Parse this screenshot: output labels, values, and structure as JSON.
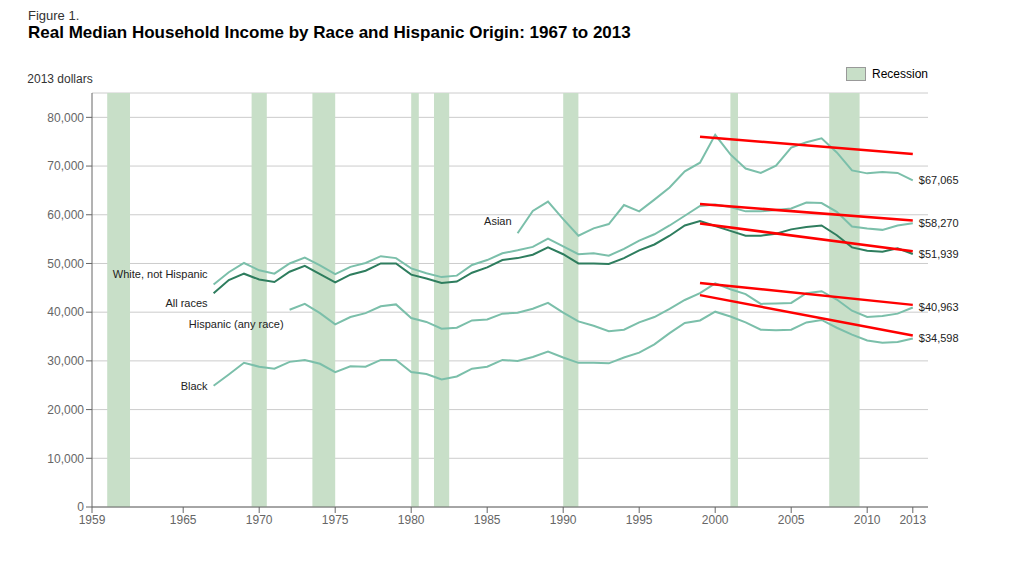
{
  "chart_data": {
    "type": "line",
    "subtitle": "Figure 1.",
    "title": "Real Median Household Income by Race and Hispanic Origin: 1967 to 2013",
    "y_label": "2013 dollars",
    "xlim": [
      1959,
      2014
    ],
    "xticks": [
      1959,
      1965,
      1970,
      1975,
      1980,
      1985,
      1990,
      1995,
      2000,
      2005,
      2010,
      2013
    ],
    "ylim": [
      0,
      85000
    ],
    "yticks": [
      0,
      {
        "value": 10000,
        "label": "10,000"
      },
      {
        "value": 20000,
        "label": "20,000"
      },
      {
        "value": 30000,
        "label": "30,000"
      },
      {
        "value": 40000,
        "label": "40,000"
      },
      {
        "value": 50000,
        "label": "50,000"
      },
      {
        "value": 60000,
        "label": "60,000"
      },
      {
        "value": 70000,
        "label": "70,000"
      },
      {
        "value": 80000,
        "label": "80,000"
      }
    ],
    "grid": true,
    "legend": "upper right",
    "recessions": {
      "name": "Recession",
      "color": "#c8dfc8",
      "ranges": [
        [
          1960,
          1961.5
        ],
        [
          1969.5,
          1970.5
        ],
        [
          1973.5,
          1975
        ],
        [
          1980,
          1980.5
        ],
        [
          1981.5,
          1982.5
        ],
        [
          1990,
          1991
        ],
        [
          2001,
          2001.5
        ],
        [
          2007.5,
          2009.5
        ]
      ]
    },
    "series": [
      {
        "name": "Asian",
        "color": "#7bbfaa",
        "x": [
          1987,
          1988,
          1989,
          1990,
          1991,
          1992,
          1993,
          1994,
          1995,
          1996,
          1997,
          1998,
          1999,
          2000,
          2001,
          2002,
          2003,
          2004,
          2005,
          2006,
          2007,
          2008,
          2009,
          2010,
          2011,
          2012,
          2013
        ],
        "values": [
          56200,
          60800,
          62700,
          59100,
          55700,
          57200,
          58100,
          62000,
          60700,
          63100,
          65600,
          68900,
          70700,
          76400,
          72400,
          69500,
          68600,
          70100,
          73800,
          74900,
          75700,
          72800,
          69100,
          68500,
          68800,
          68600,
          67065
        ],
        "value_labels": [
          null,
          null,
          null,
          null,
          null,
          null,
          null,
          null,
          null,
          null,
          null,
          null,
          null,
          null,
          null,
          null,
          null,
          null,
          null,
          null,
          null,
          null,
          null,
          null,
          null,
          null,
          "$67,065"
        ]
      },
      {
        "name": "Hispanic (any race)",
        "color": "#7bbfaa",
        "x": [
          1972,
          1973,
          1974,
          1975,
          1976,
          1977,
          1978,
          1979,
          1980,
          1981,
          1982,
          1983,
          1984,
          1985,
          1986,
          1987,
          1988,
          1989,
          1990,
          1991,
          1992,
          1993,
          1994,
          1995,
          1996,
          1997,
          1998,
          1999,
          2000,
          2001,
          2002,
          2003,
          2004,
          2005,
          2006,
          2007,
          2008,
          2009,
          2010,
          2011,
          2012,
          2013
        ],
        "values": [
          40500,
          41700,
          39800,
          37500,
          39000,
          39800,
          41200,
          41600,
          38800,
          38000,
          36600,
          36800,
          38300,
          38500,
          39700,
          39900,
          40700,
          41900,
          39900,
          38100,
          37200,
          36100,
          36400,
          37900,
          39000,
          40700,
          42500,
          43900,
          45900,
          44700,
          43700,
          41700,
          41800,
          41900,
          43900,
          44300,
          42600,
          40300,
          39000,
          39200,
          39700,
          40963
        ],
        "value_labels": [
          null,
          null,
          null,
          null,
          null,
          null,
          null,
          null,
          null,
          null,
          null,
          null,
          null,
          null,
          null,
          null,
          null,
          null,
          null,
          null,
          null,
          null,
          null,
          null,
          null,
          null,
          null,
          null,
          null,
          null,
          null,
          null,
          null,
          null,
          null,
          null,
          null,
          null,
          null,
          null,
          null,
          "$40,963"
        ]
      },
      {
        "name": "Black",
        "color": "#7bbfaa",
        "x": [
          1967,
          1968,
          1969,
          1970,
          1971,
          1972,
          1973,
          1974,
          1975,
          1976,
          1977,
          1978,
          1979,
          1980,
          1981,
          1982,
          1983,
          1984,
          1985,
          1986,
          1987,
          1988,
          1989,
          1990,
          1991,
          1992,
          1993,
          1994,
          1995,
          1996,
          1997,
          1998,
          1999,
          2000,
          2001,
          2002,
          2003,
          2004,
          2005,
          2006,
          2007,
          2008,
          2009,
          2010,
          2011,
          2012,
          2013
        ],
        "values": [
          24900,
          27200,
          29600,
          28800,
          28400,
          29800,
          30200,
          29400,
          27700,
          28900,
          28800,
          30200,
          30200,
          27700,
          27300,
          26200,
          26800,
          28400,
          28800,
          30200,
          30000,
          30800,
          31900,
          30700,
          29600,
          29600,
          29500,
          30700,
          31700,
          33400,
          35700,
          37800,
          38300,
          40100,
          39100,
          37900,
          36400,
          36300,
          36400,
          37900,
          38400,
          36800,
          35400,
          34200,
          33700,
          33900,
          34598
        ],
        "value_labels": [
          null,
          null,
          null,
          null,
          null,
          null,
          null,
          null,
          null,
          null,
          null,
          null,
          null,
          null,
          null,
          null,
          null,
          null,
          null,
          null,
          null,
          null,
          null,
          null,
          null,
          null,
          null,
          null,
          null,
          null,
          null,
          null,
          null,
          null,
          null,
          null,
          null,
          null,
          null,
          null,
          null,
          null,
          null,
          null,
          null,
          null,
          "$34,598"
        ]
      },
      {
        "name": "White, not Hispanic",
        "color": "#7bbfaa",
        "x": [
          1967,
          1968,
          1969,
          1970,
          1971,
          1972,
          1973,
          1974,
          1975,
          1976,
          1977,
          1978,
          1979,
          1980,
          1981,
          1982,
          1983,
          1984,
          1985,
          1986,
          1987,
          1988,
          1989,
          1990,
          1991,
          1992,
          1993,
          1994,
          1995,
          1996,
          1997,
          1998,
          1999,
          2000,
          2001,
          2002,
          2003,
          2004,
          2005,
          2006,
          2007,
          2008,
          2009,
          2010,
          2011,
          2012,
          2013
        ],
        "values": [
          45700,
          48200,
          50100,
          48600,
          47900,
          50000,
          51200,
          49600,
          47800,
          49300,
          50100,
          51500,
          51100,
          49000,
          48000,
          47200,
          47500,
          49700,
          50700,
          52100,
          52700,
          53400,
          55100,
          53500,
          51900,
          52100,
          51600,
          53000,
          54700,
          56000,
          57800,
          59800,
          61800,
          62100,
          61600,
          60700,
          60700,
          61000,
          61300,
          62500,
          62400,
          60600,
          57600,
          57200,
          56900,
          57800,
          58270
        ],
        "value_labels": [
          null,
          null,
          null,
          null,
          null,
          null,
          null,
          null,
          null,
          null,
          null,
          null,
          null,
          null,
          null,
          null,
          null,
          null,
          null,
          null,
          null,
          null,
          null,
          null,
          null,
          null,
          null,
          null,
          null,
          null,
          null,
          null,
          null,
          null,
          null,
          null,
          null,
          null,
          null,
          null,
          null,
          null,
          null,
          null,
          null,
          null,
          "$58,270"
        ]
      },
      {
        "name": "All races",
        "color": "#2e7d5e",
        "x": [
          1967,
          1968,
          1969,
          1970,
          1971,
          1972,
          1973,
          1974,
          1975,
          1976,
          1977,
          1978,
          1979,
          1980,
          1981,
          1982,
          1983,
          1984,
          1985,
          1986,
          1987,
          1988,
          1989,
          1990,
          1991,
          1992,
          1993,
          1994,
          1995,
          1996,
          1997,
          1998,
          1999,
          2000,
          2001,
          2002,
          2003,
          2004,
          2005,
          2006,
          2007,
          2008,
          2009,
          2010,
          2011,
          2012,
          2013
        ],
        "values": [
          43900,
          46600,
          47900,
          46700,
          46200,
          48300,
          49500,
          47800,
          46100,
          47700,
          48500,
          50000,
          50000,
          47700,
          46900,
          46000,
          46300,
          48100,
          49200,
          50700,
          51100,
          51800,
          53300,
          51900,
          50000,
          50000,
          49900,
          51100,
          52700,
          53900,
          55700,
          57800,
          58700,
          57700,
          56700,
          55700,
          55700,
          56100,
          57000,
          57500,
          57800,
          55800,
          53300,
          52600,
          52400,
          53100,
          51939
        ],
        "value_labels": [
          null,
          null,
          null,
          null,
          null,
          null,
          null,
          null,
          null,
          null,
          null,
          null,
          null,
          null,
          null,
          null,
          null,
          null,
          null,
          null,
          null,
          null,
          null,
          null,
          null,
          null,
          null,
          null,
          null,
          null,
          null,
          null,
          null,
          null,
          null,
          null,
          null,
          null,
          null,
          null,
          null,
          null,
          null,
          null,
          null,
          null,
          "$51,939"
        ]
      }
    ],
    "trend_lines": [
      {
        "color": "red",
        "x": [
          1999,
          2013
        ],
        "values": [
          76000,
          72500
        ]
      },
      {
        "color": "red",
        "x": [
          1999,
          2013
        ],
        "values": [
          62200,
          58800
        ]
      },
      {
        "color": "red",
        "x": [
          1999,
          2013
        ],
        "values": [
          58200,
          52500
        ]
      },
      {
        "color": "red",
        "x": [
          1999,
          2013
        ],
        "values": [
          46000,
          41500
        ]
      },
      {
        "color": "red",
        "x": [
          1999,
          2013
        ],
        "values": [
          43500,
          35200
        ]
      }
    ]
  }
}
